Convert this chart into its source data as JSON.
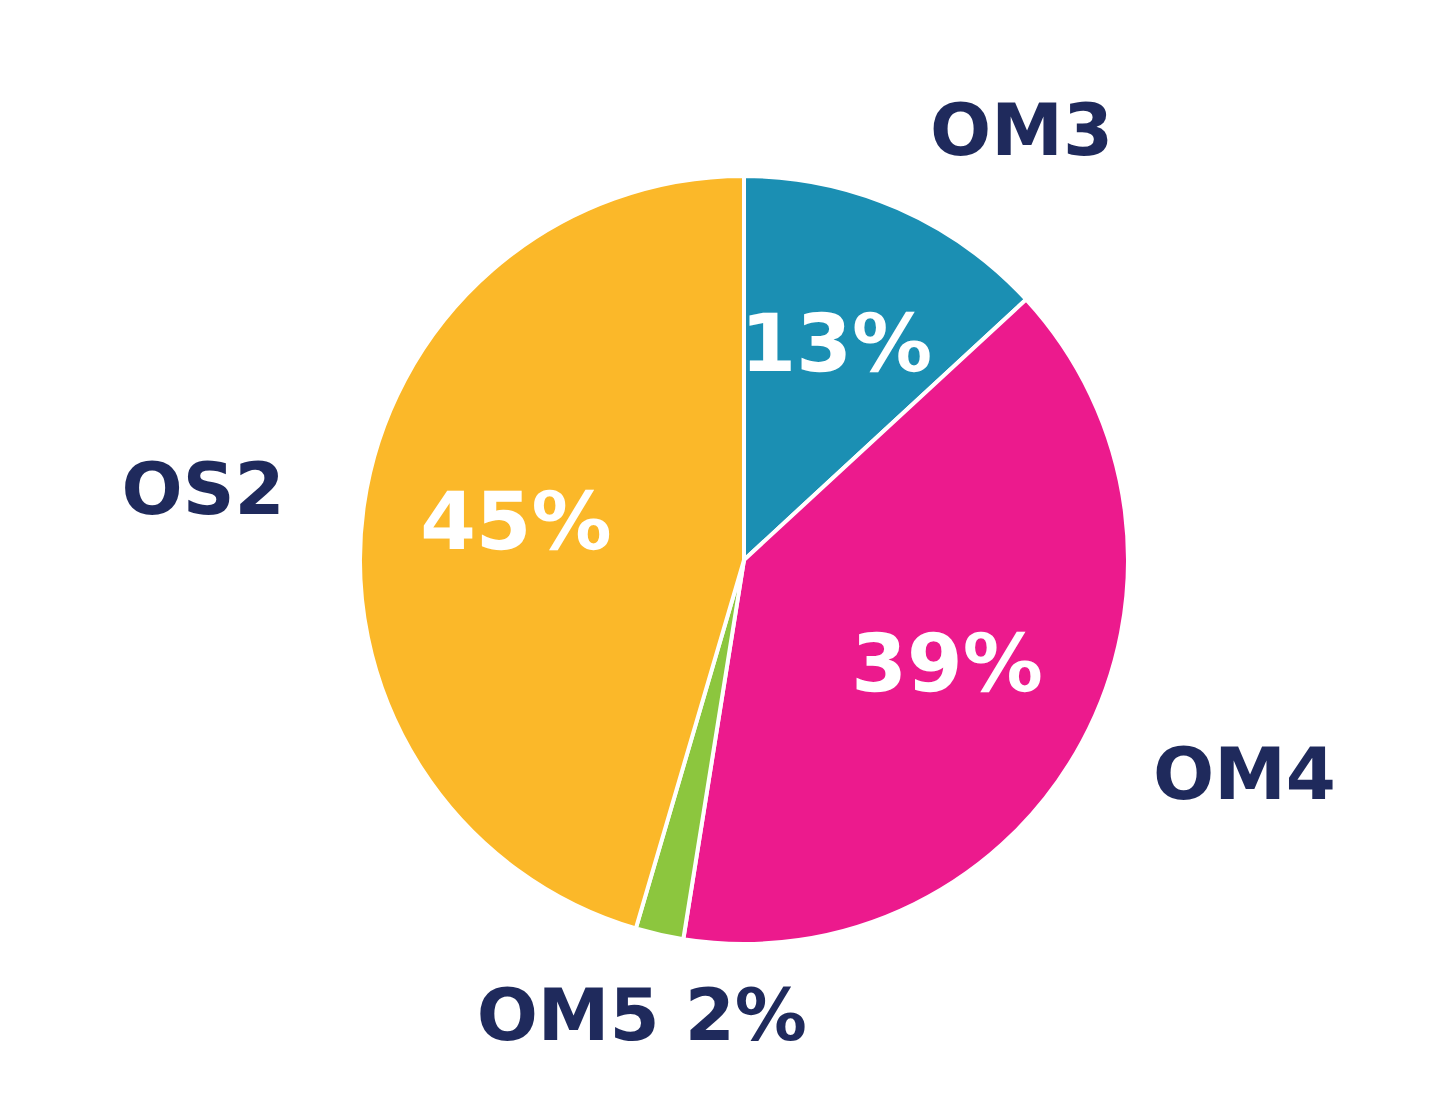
{
  "chart_data": {
    "type": "pie",
    "categories": [
      "OM3",
      "OM4",
      "OM5",
      "OS2"
    ],
    "values": [
      13,
      39,
      2,
      45
    ],
    "colors": [
      "#1b8fb3",
      "#ec1a8d",
      "#8cc63e",
      "#fbb829"
    ],
    "value_labels": [
      "13%",
      "39%",
      "2%",
      "45%"
    ]
  }
}
